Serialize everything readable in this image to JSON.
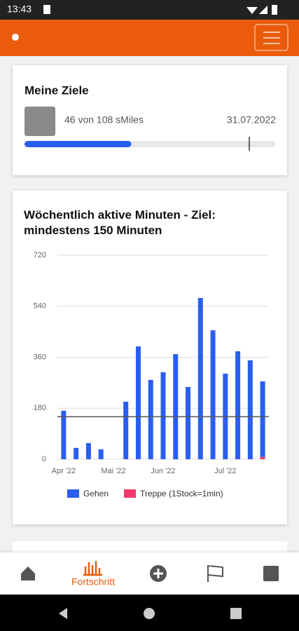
{
  "status_bar": {
    "time": "13:43"
  },
  "goals_card": {
    "title": "Meine Ziele",
    "progress": {
      "label": "46 von 108 sMiles",
      "current": 46,
      "target": 108
    },
    "date": "31.07.2022"
  },
  "chart_data": {
    "type": "bar",
    "stacked": true,
    "title": "Wöchentlich aktive Minuten - Ziel: mindestens 150 Minuten",
    "categories": [
      "Apr '22",
      null,
      null,
      null,
      "Mai '22",
      null,
      null,
      null,
      "Jun '22",
      null,
      null,
      null,
      null,
      "Jul '22",
      null,
      null,
      null
    ],
    "series": [
      {
        "name": "Treppe (1Stock=1min)",
        "color": "#f0386b",
        "values": [
          0,
          0,
          0,
          0,
          0,
          0,
          0,
          0,
          0,
          0,
          0,
          0,
          0,
          0,
          0,
          0,
          8
        ]
      },
      {
        "name": "Gehen",
        "color": "#2a5ef0",
        "values": [
          171,
          40,
          57,
          35,
          0,
          203,
          398,
          280,
          307,
          371,
          255,
          569,
          455,
          302,
          381,
          349,
          267
        ]
      }
    ],
    "goal_line": 150,
    "ylim": [
      0,
      720
    ],
    "yticks": [
      0,
      180,
      360,
      540,
      720
    ],
    "grid": true
  },
  "bottom_nav": {
    "items": [
      "Fortschritt"
    ]
  }
}
